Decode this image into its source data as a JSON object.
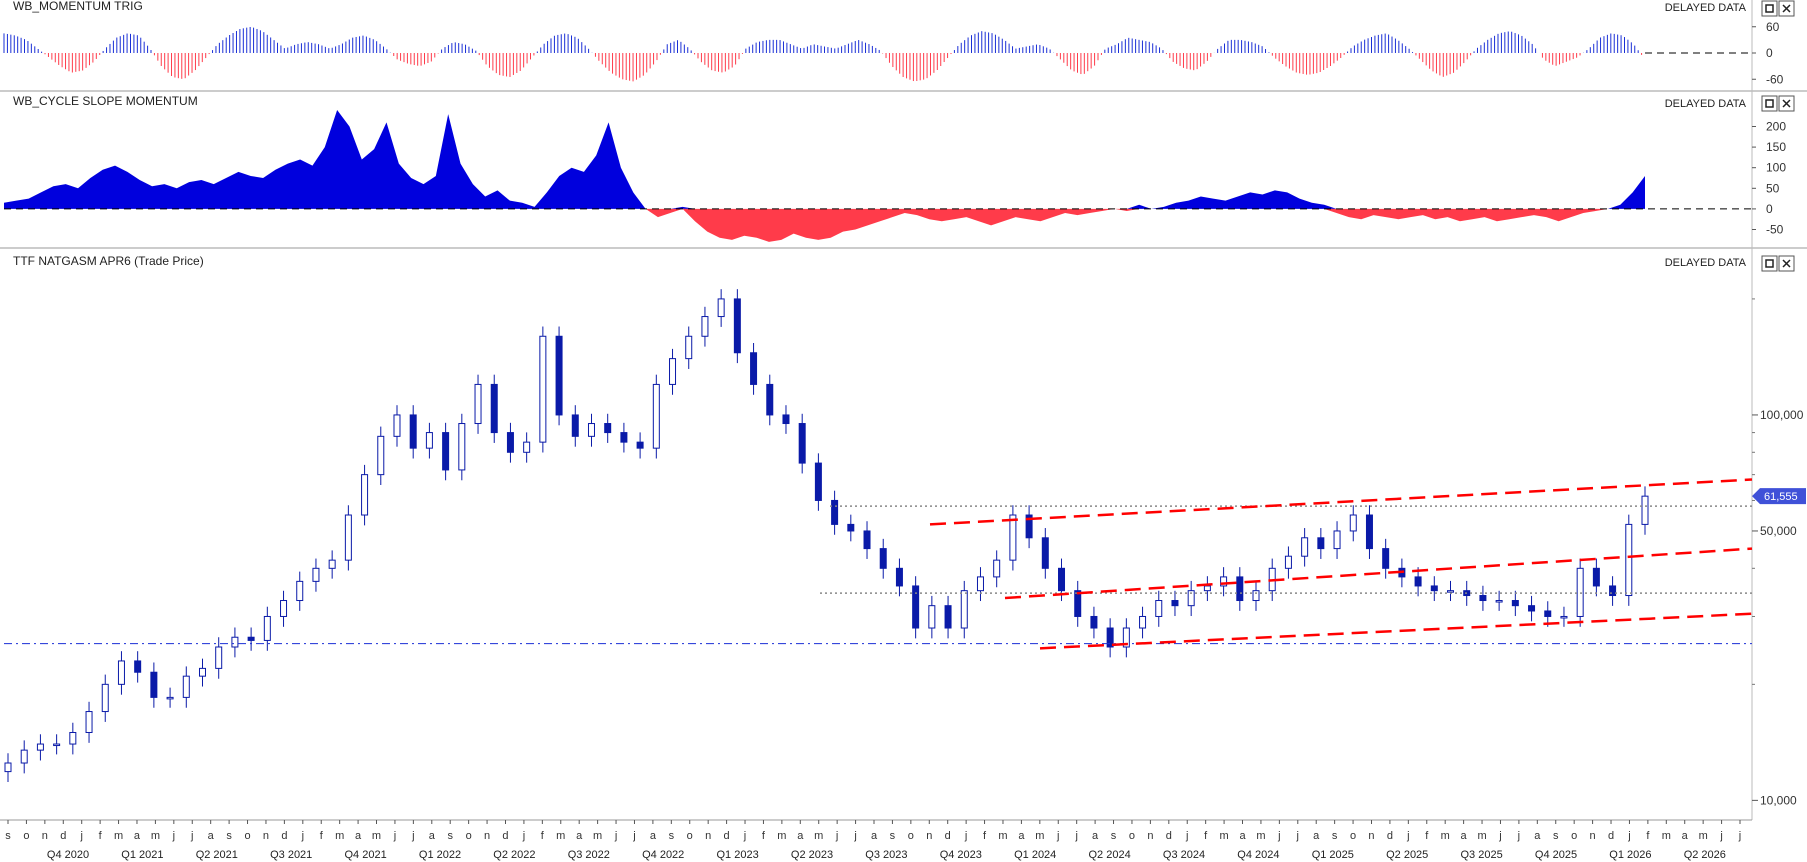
{
  "panels": {
    "momentum": {
      "title": "WB_MOMENTUM TRIG",
      "status": "DELAYED DATA"
    },
    "cycle": {
      "title": "WB_CYCLE SLOPE MOMENTUM",
      "status": "DELAYED DATA"
    },
    "price": {
      "title": "TTF NATGASM APR6 (Trade Price)",
      "status": "DELAYED DATA",
      "last_price": "61,555"
    }
  },
  "colors": {
    "up": "#1a2fd6",
    "down": "#ff3b4a",
    "candle": "#0a1aa8",
    "trend": "#ff0000",
    "support": "#1a2fd6",
    "badge": "#3f51d8"
  },
  "icons": [
    "maximize-icon",
    "close-icon"
  ],
  "chart_data": [
    {
      "type": "bar",
      "title": "WB_MOMENTUM TRIG",
      "yticks": [
        "60",
        "0",
        "-60"
      ],
      "ylim": [
        -80,
        80
      ],
      "note_values": "oscillating histogram, amplitude approx ±65",
      "series": [
        {
          "values": [
            45,
            40,
            30,
            10,
            -10,
            -30,
            -45,
            -40,
            -20,
            10,
            35,
            45,
            40,
            10,
            -30,
            -55,
            -60,
            -40,
            -10,
            20,
            40,
            55,
            60,
            50,
            30,
            10,
            20,
            25,
            20,
            10,
            20,
            35,
            40,
            30,
            10,
            -15,
            -25,
            -30,
            -20,
            10,
            25,
            20,
            5,
            -30,
            -50,
            -55,
            -40,
            -10,
            20,
            40,
            45,
            35,
            10,
            -20,
            -45,
            -60,
            -65,
            -50,
            -20,
            20,
            30,
            10,
            -20,
            -40,
            -45,
            -30,
            10,
            25,
            30,
            30,
            20,
            10,
            20,
            15,
            10,
            20,
            30,
            20,
            5,
            -30,
            -55,
            -65,
            -60,
            -40,
            -10,
            20,
            40,
            50,
            45,
            30,
            10,
            15,
            20,
            10,
            -15,
            -40,
            -50,
            -30,
            10,
            20,
            35,
            30,
            25,
            10,
            -20,
            -35,
            -40,
            -20,
            10,
            30,
            30,
            25,
            15,
            -10,
            -30,
            -45,
            -50,
            -45,
            -30,
            -10,
            15,
            30,
            40,
            45,
            30,
            10,
            -15,
            -40,
            -55,
            -45,
            -20,
            10,
            30,
            45,
            50,
            40,
            20,
            -15,
            -30,
            -20,
            -10,
            10,
            35,
            45,
            40,
            20,
            -15
          ]
        }
      ]
    },
    {
      "type": "area",
      "title": "WB_CYCLE SLOPE MOMENTUM",
      "yticks": [
        "200",
        "150",
        "100",
        "50",
        "0",
        "-50"
      ],
      "ylim": [
        -90,
        240
      ],
      "series": [
        {
          "values": [
            15,
            20,
            25,
            40,
            55,
            60,
            50,
            75,
            95,
            105,
            90,
            70,
            55,
            60,
            50,
            65,
            70,
            60,
            75,
            90,
            80,
            75,
            95,
            110,
            120,
            105,
            150,
            240,
            200,
            120,
            145,
            210,
            110,
            75,
            60,
            80,
            230,
            110,
            60,
            30,
            45,
            20,
            15,
            5,
            40,
            80,
            100,
            90,
            130,
            210,
            100,
            40,
            0,
            -20,
            -10,
            5,
            -30,
            -55,
            -70,
            -75,
            -65,
            -70,
            -80,
            -75,
            -60,
            -70,
            -75,
            -70,
            -55,
            -50,
            -40,
            -30,
            -20,
            -10,
            -15,
            -25,
            -30,
            -25,
            -20,
            -30,
            -40,
            -30,
            -20,
            -25,
            -30,
            -20,
            -10,
            -15,
            -10,
            -5,
            0,
            -5,
            10,
            0,
            5,
            15,
            20,
            30,
            25,
            20,
            30,
            40,
            35,
            45,
            40,
            25,
            15,
            10,
            -10,
            -20,
            -25,
            -15,
            -20,
            -25,
            -20,
            -15,
            -25,
            -20,
            -30,
            -25,
            -20,
            -30,
            -25,
            -20,
            -15,
            -20,
            -30,
            -20,
            -10,
            -5,
            0,
            10,
            40,
            80
          ]
        }
      ]
    },
    {
      "type": "line",
      "title": "TTF NATGASM APR6 (Trade Price)",
      "yscale": "log",
      "ylim": [
        9000,
        260000
      ],
      "yticks": [
        "100,000",
        "50,000",
        "10,000"
      ],
      "last_price": 61555,
      "support_level": 25500,
      "months": [
        "s",
        "o",
        "n",
        "d",
        "j",
        "f",
        "m",
        "a",
        "m",
        "j",
        "j",
        "a",
        "s",
        "o",
        "n",
        "d",
        "j",
        "f",
        "m",
        "a",
        "m",
        "j",
        "j",
        "a",
        "s",
        "o",
        "n",
        "d",
        "j",
        "f",
        "m",
        "a",
        "m",
        "j",
        "j",
        "a",
        "s",
        "o",
        "n",
        "d",
        "j",
        "f",
        "m",
        "a",
        "m",
        "j",
        "j",
        "a",
        "s",
        "o",
        "n",
        "d",
        "j",
        "f",
        "m",
        "a",
        "m",
        "j",
        "j",
        "a",
        "s",
        "o",
        "n",
        "d",
        "j",
        "f",
        "m",
        "a",
        "m",
        "j",
        "j",
        "a",
        "s",
        "o",
        "n",
        "d",
        "j",
        "f",
        "m",
        "a",
        "m",
        "j",
        "j",
        "a",
        "s",
        "o",
        "n",
        "d",
        "j",
        "f",
        "m",
        "a",
        "m",
        "j",
        "j"
      ],
      "quarters": [
        "Q4 2020",
        "Q1 2021",
        "Q2 2021",
        "Q3 2021",
        "Q4 2021",
        "Q1 2022",
        "Q2 2022",
        "Q3 2022",
        "Q4 2022",
        "Q1 2023",
        "Q2 2023",
        "Q3 2023",
        "Q4 2023",
        "Q1 2024",
        "Q2 2024",
        "Q3 2024",
        "Q4 2024",
        "Q1 2025",
        "Q2 2025",
        "Q3 2025",
        "Q4 2025",
        "Q1 2026",
        "Q2 2026"
      ],
      "closes": [
        12500,
        13500,
        14000,
        14000,
        15000,
        17000,
        20000,
        23000,
        21500,
        18500,
        18500,
        21000,
        22000,
        25000,
        26500,
        26000,
        30000,
        33000,
        37000,
        40000,
        42000,
        55000,
        70000,
        88000,
        100000,
        82000,
        90000,
        72000,
        95000,
        120000,
        90000,
        80000,
        85000,
        160000,
        100000,
        88000,
        95000,
        90000,
        85000,
        82000,
        120000,
        140000,
        160000,
        180000,
        200000,
        145000,
        120000,
        100000,
        95000,
        75000,
        60000,
        52000,
        50000,
        45000,
        40000,
        36000,
        28000,
        32000,
        28000,
        35000,
        38000,
        42000,
        55000,
        48000,
        40000,
        35000,
        30000,
        28000,
        25000,
        28000,
        30000,
        33000,
        32000,
        35000,
        36000,
        38000,
        33000,
        35000,
        40000,
        43000,
        48000,
        45000,
        50000,
        55000,
        45000,
        40000,
        38000,
        36000,
        35000,
        35000,
        34000,
        33000,
        33000,
        32000,
        31000,
        30000,
        30000,
        40000,
        36000,
        34000,
        52000,
        61555
      ]
    }
  ]
}
